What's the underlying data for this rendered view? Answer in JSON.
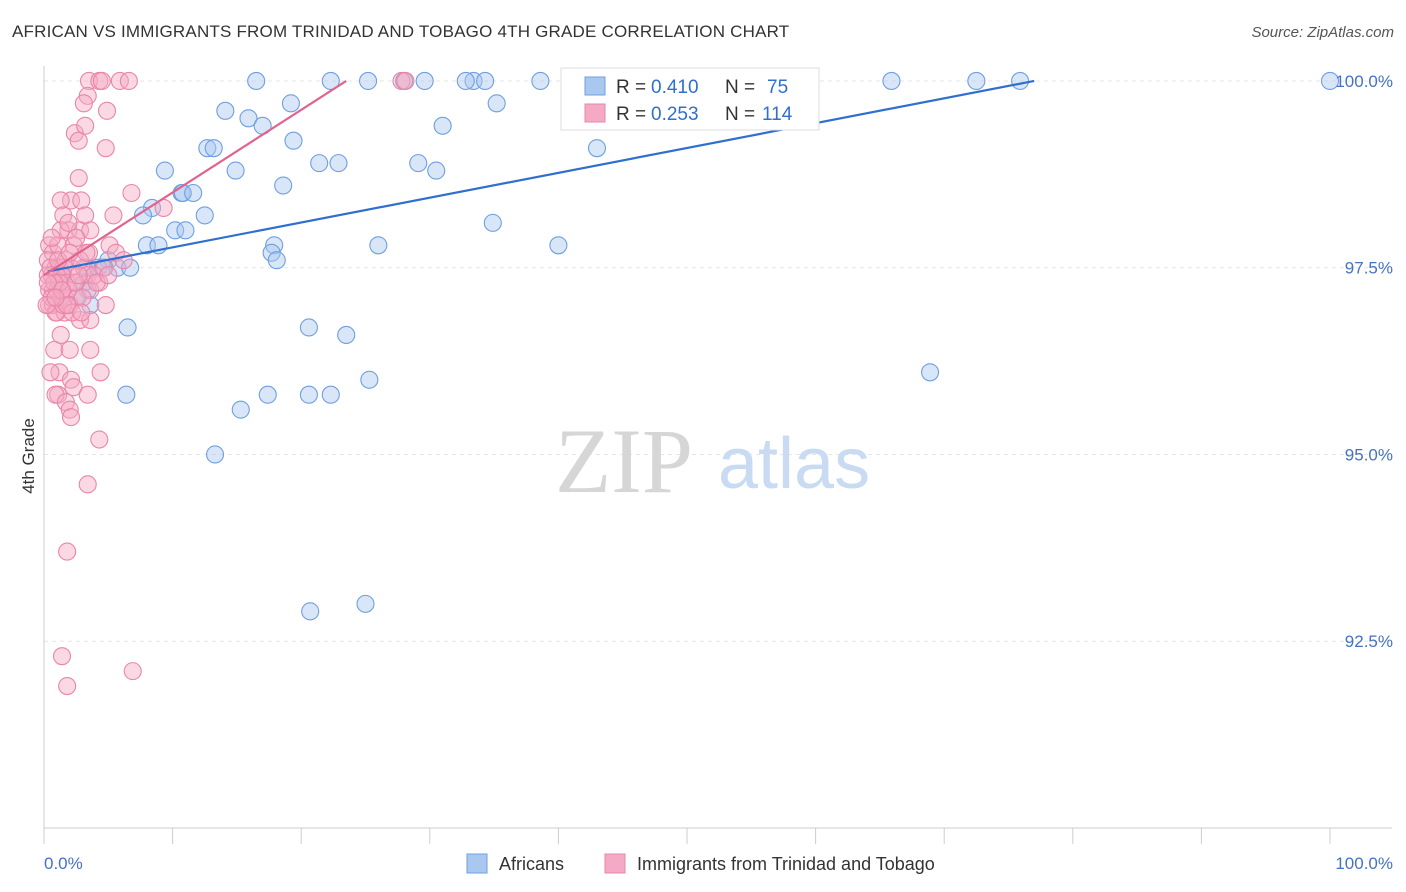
{
  "title": "AFRICAN VS IMMIGRANTS FROM TRINIDAD AND TOBAGO 4TH GRADE CORRELATION CHART",
  "source": "Source: ZipAtlas.com",
  "watermark": {
    "zip": "ZIP",
    "atlas": "atlas"
  },
  "colors": {
    "blue": "#2f6fcf",
    "blue_fill": "#a9c8f0",
    "pink": "#e0648f",
    "pink_fill": "#f4aac4",
    "grid": "#e6e6e6",
    "tick": "#4472c4"
  },
  "stats_legend": {
    "rows": [
      {
        "series": "Africans",
        "r_label": "R = ",
        "r_value": "0.410",
        "n_label": "N = ",
        "n_value": "75"
      },
      {
        "series": "Immigrants from Trinidad and Tobago",
        "r_label": "R = ",
        "r_value": "0.253",
        "n_label": "N = ",
        "n_value": "114"
      }
    ]
  },
  "chart_data": {
    "type": "scatter",
    "title": "AFRICAN VS IMMIGRANTS FROM TRINIDAD AND TOBAGO 4TH GRADE CORRELATION CHART",
    "xlabel": "",
    "ylabel": "4th Grade",
    "xlim": [
      0,
      100
    ],
    "ylim": [
      90.0,
      100.2
    ],
    "x_tick_labels": [
      "0.0%",
      "100.0%"
    ],
    "y_ticks": [
      92.5,
      95.0,
      97.5,
      100.0
    ],
    "y_tick_labels": [
      "92.5%",
      "95.0%",
      "97.5%",
      "100.0%"
    ],
    "legend": [
      "Africans",
      "Immigrants from Trinidad and Tobago"
    ],
    "series": [
      {
        "name": "Africans",
        "color": "#2f6fcf",
        "trend": {
          "x": [
            0.3,
            77.0
          ],
          "y": [
            97.45,
            100.0
          ]
        },
        "points": [
          [
            16.5,
            100.0
          ],
          [
            22.3,
            100.0
          ],
          [
            25.2,
            100.0
          ],
          [
            29.6,
            100.0
          ],
          [
            28.0,
            100.0
          ],
          [
            33.4,
            100.0
          ],
          [
            32.8,
            100.0
          ],
          [
            34.3,
            100.0
          ],
          [
            38.6,
            100.0
          ],
          [
            43.4,
            100.0
          ],
          [
            46.6,
            100.0
          ],
          [
            52.0,
            100.0
          ],
          [
            55.7,
            100.0
          ],
          [
            58.3,
            100.0
          ],
          [
            65.9,
            100.0
          ],
          [
            72.5,
            100.0
          ],
          [
            75.9,
            100.0
          ],
          [
            100.0,
            100.0
          ],
          [
            19.2,
            99.7
          ],
          [
            35.2,
            99.7
          ],
          [
            14.1,
            99.6
          ],
          [
            15.9,
            99.5
          ],
          [
            17.0,
            99.4
          ],
          [
            31.0,
            99.4
          ],
          [
            12.7,
            99.1
          ],
          [
            13.2,
            99.1
          ],
          [
            19.4,
            99.2
          ],
          [
            43.0,
            99.1
          ],
          [
            21.4,
            98.9
          ],
          [
            22.9,
            98.9
          ],
          [
            29.1,
            98.9
          ],
          [
            9.4,
            98.8
          ],
          [
            14.9,
            98.8
          ],
          [
            30.5,
            98.8
          ],
          [
            18.6,
            98.6
          ],
          [
            10.7,
            98.5
          ],
          [
            10.8,
            98.5
          ],
          [
            11.6,
            98.5
          ],
          [
            12.5,
            98.2
          ],
          [
            8.4,
            98.3
          ],
          [
            7.7,
            98.2
          ],
          [
            34.9,
            98.1
          ],
          [
            10.2,
            98.0
          ],
          [
            11.0,
            98.0
          ],
          [
            8.0,
            97.8
          ],
          [
            8.9,
            97.8
          ],
          [
            17.9,
            97.8
          ],
          [
            26.0,
            97.8
          ],
          [
            40.0,
            97.8
          ],
          [
            17.7,
            97.7
          ],
          [
            18.1,
            97.6
          ],
          [
            5.0,
            97.6
          ],
          [
            5.7,
            97.5
          ],
          [
            3.3,
            97.5
          ],
          [
            4.2,
            97.5
          ],
          [
            4.6,
            97.5
          ],
          [
            6.7,
            97.5
          ],
          [
            3.1,
            97.3
          ],
          [
            3.4,
            97.2
          ],
          [
            3.6,
            97.0
          ],
          [
            6.5,
            96.7
          ],
          [
            20.6,
            96.7
          ],
          [
            23.5,
            96.6
          ],
          [
            68.9,
            96.1
          ],
          [
            25.3,
            96.0
          ],
          [
            6.4,
            95.8
          ],
          [
            17.4,
            95.8
          ],
          [
            20.6,
            95.8
          ],
          [
            22.3,
            95.8
          ],
          [
            15.3,
            95.6
          ],
          [
            13.3,
            95.0
          ],
          [
            20.7,
            92.9
          ],
          [
            25.0,
            93.0
          ],
          [
            1.5,
            97.4
          ],
          [
            2.6,
            97.1
          ]
        ]
      },
      {
        "name": "Immigrants from Trinidad and Tobago",
        "color": "#e0648f",
        "trend": {
          "x": [
            0.0,
            23.5
          ],
          "y": [
            97.4,
            100.0
          ]
        },
        "points": [
          [
            3.5,
            100.0
          ],
          [
            4.3,
            100.0
          ],
          [
            4.5,
            100.0
          ],
          [
            5.9,
            100.0
          ],
          [
            6.6,
            100.0
          ],
          [
            27.8,
            100.0
          ],
          [
            28.1,
            100.0
          ],
          [
            3.4,
            99.8
          ],
          [
            3.1,
            99.7
          ],
          [
            4.9,
            99.6
          ],
          [
            2.4,
            99.3
          ],
          [
            2.7,
            99.2
          ],
          [
            3.2,
            99.4
          ],
          [
            4.8,
            99.1
          ],
          [
            2.7,
            98.7
          ],
          [
            2.1,
            98.4
          ],
          [
            1.3,
            98.4
          ],
          [
            2.9,
            98.4
          ],
          [
            1.5,
            98.2
          ],
          [
            3.2,
            98.2
          ],
          [
            5.4,
            98.2
          ],
          [
            9.3,
            98.3
          ],
          [
            1.9,
            98.0
          ],
          [
            2.8,
            98.0
          ],
          [
            3.6,
            98.0
          ],
          [
            1.3,
            98.0
          ],
          [
            0.4,
            97.8
          ],
          [
            0.7,
            97.7
          ],
          [
            1.1,
            97.8
          ],
          [
            2.3,
            97.8
          ],
          [
            3.5,
            97.7
          ],
          [
            5.1,
            97.8
          ],
          [
            5.6,
            97.7
          ],
          [
            0.3,
            97.6
          ],
          [
            0.9,
            97.5
          ],
          [
            1.2,
            97.5
          ],
          [
            1.5,
            97.5
          ],
          [
            2.1,
            97.5
          ],
          [
            3.1,
            97.5
          ],
          [
            4.7,
            97.5
          ],
          [
            6.2,
            97.6
          ],
          [
            0.3,
            97.4
          ],
          [
            0.6,
            97.4
          ],
          [
            1.0,
            97.4
          ],
          [
            1.4,
            97.4
          ],
          [
            1.8,
            97.3
          ],
          [
            2.5,
            97.3
          ],
          [
            3.4,
            97.4
          ],
          [
            4.3,
            97.3
          ],
          [
            0.4,
            97.2
          ],
          [
            0.7,
            97.2
          ],
          [
            1.0,
            97.2
          ],
          [
            1.3,
            97.1
          ],
          [
            1.6,
            97.1
          ],
          [
            1.9,
            97.2
          ],
          [
            2.6,
            97.1
          ],
          [
            3.6,
            97.2
          ],
          [
            4.8,
            97.0
          ],
          [
            0.4,
            97.0
          ],
          [
            0.7,
            97.0
          ],
          [
            1.0,
            96.9
          ],
          [
            1.6,
            96.9
          ],
          [
            2.0,
            97.0
          ],
          [
            2.8,
            96.8
          ],
          [
            3.6,
            96.8
          ],
          [
            1.3,
            96.6
          ],
          [
            0.8,
            96.4
          ],
          [
            2.0,
            96.4
          ],
          [
            3.6,
            96.4
          ],
          [
            1.2,
            96.1
          ],
          [
            0.5,
            96.1
          ],
          [
            2.1,
            96.0
          ],
          [
            4.4,
            96.1
          ],
          [
            2.3,
            95.9
          ],
          [
            3.4,
            95.8
          ],
          [
            1.1,
            95.8
          ],
          [
            0.9,
            95.8
          ],
          [
            1.7,
            95.7
          ],
          [
            2.0,
            95.6
          ],
          [
            2.1,
            95.5
          ],
          [
            4.3,
            95.2
          ],
          [
            3.4,
            94.6
          ],
          [
            1.8,
            93.7
          ],
          [
            1.4,
            92.3
          ],
          [
            1.8,
            91.9
          ],
          [
            6.9,
            92.1
          ],
          [
            1.7,
            97.6
          ],
          [
            2.4,
            97.3
          ],
          [
            1.2,
            97.3
          ],
          [
            0.8,
            97.3
          ],
          [
            0.5,
            97.5
          ],
          [
            2.8,
            97.6
          ],
          [
            3.9,
            97.4
          ],
          [
            1.9,
            98.1
          ],
          [
            2.5,
            97.9
          ],
          [
            0.6,
            97.9
          ],
          [
            3.0,
            97.1
          ],
          [
            4.1,
            97.3
          ],
          [
            0.9,
            96.9
          ],
          [
            1.5,
            97.0
          ],
          [
            2.2,
            96.9
          ],
          [
            0.3,
            97.3
          ],
          [
            1.1,
            97.6
          ],
          [
            2.0,
            97.7
          ],
          [
            3.3,
            97.7
          ],
          [
            0.6,
            97.1
          ],
          [
            1.8,
            97.0
          ],
          [
            2.7,
            97.4
          ],
          [
            1.4,
            97.2
          ],
          [
            2.9,
            96.9
          ],
          [
            0.2,
            97.0
          ],
          [
            5.0,
            97.4
          ],
          [
            6.8,
            98.5
          ],
          [
            0.9,
            97.1
          ]
        ]
      }
    ]
  }
}
